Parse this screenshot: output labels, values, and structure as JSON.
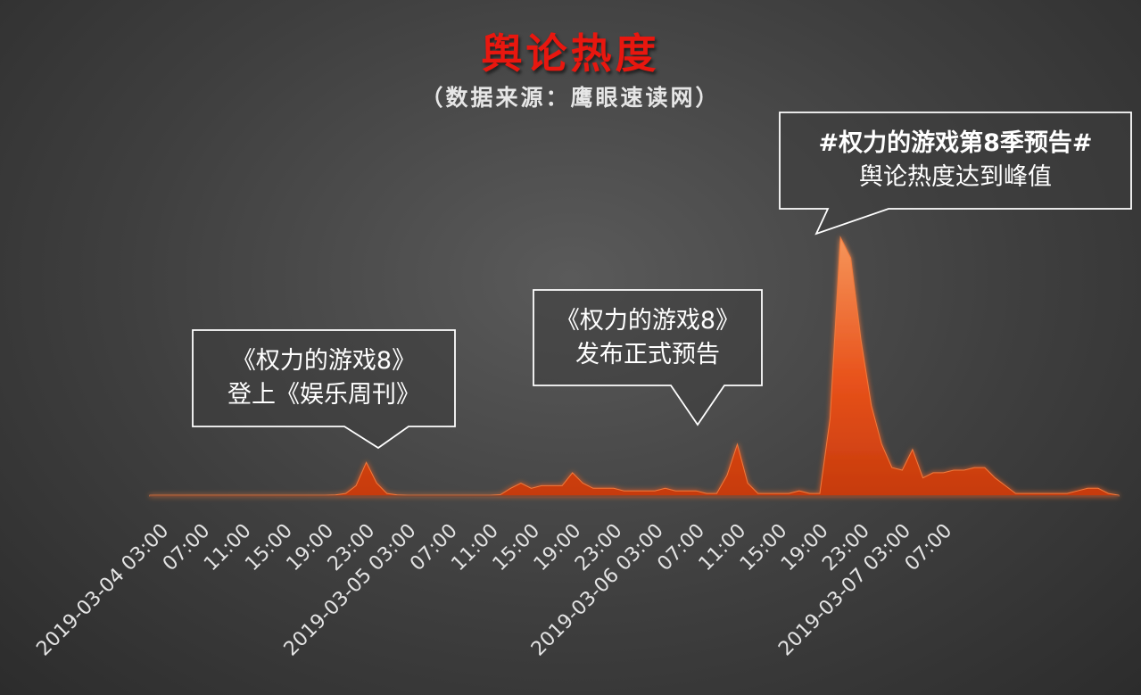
{
  "chart_data": {
    "type": "area",
    "title": "舆论热度",
    "subtitle": "（数据来源：鹰眼速读网）",
    "x_tick_labels": [
      "2019-03-04 03:00",
      "07:00",
      "11:00",
      "15:00",
      "19:00",
      "23:00",
      "2019-03-05 03:00",
      "07:00",
      "11:00",
      "15:00",
      "19:00",
      "23:00",
      "2019-03-06 03:00",
      "07:00",
      "11:00",
      "15:00",
      "19:00",
      "23:00",
      "2019-03-07 03:00",
      "07:00"
    ],
    "x_start": "2019-03-04 03:00",
    "x_step_hours": 1,
    "series": [
      {
        "values": [
          0.3,
          0.3,
          0.3,
          0.3,
          0.3,
          0.3,
          0.3,
          0.3,
          0.3,
          0.3,
          0.3,
          0.3,
          0.3,
          0.3,
          0.3,
          0.3,
          0.3,
          0.3,
          0.4,
          1,
          4,
          13,
          5,
          1,
          0.4,
          0.3,
          0.3,
          0.3,
          0.3,
          0.3,
          0.3,
          0.3,
          0.3,
          0.3,
          0.5,
          3,
          5,
          3,
          4,
          4,
          4,
          9,
          5,
          3,
          3,
          3,
          2,
          2,
          2,
          2,
          3,
          2,
          2,
          2,
          1,
          1,
          8,
          20,
          5,
          1,
          1,
          1,
          1,
          2,
          1,
          1,
          30,
          100,
          92,
          60,
          35,
          20,
          11,
          10,
          18,
          7,
          9,
          9,
          10,
          10,
          11,
          11,
          7,
          4,
          1,
          1,
          1,
          1,
          1,
          1,
          2,
          3,
          3,
          1,
          0.3
        ],
        "color": "#e8521b"
      }
    ],
    "ylim": [
      0,
      100
    ],
    "grid": false,
    "legend": "none",
    "annotations": [
      {
        "lines": [
          "《权力的游戏8》",
          "登上《娱乐周刊》"
        ],
        "at": "2019-03-04 23:00"
      },
      {
        "lines": [
          "《权力的游戏8》",
          "发布正式预告"
        ],
        "at": "2019-03-06 00:00"
      },
      {
        "lines": [
          "#权力的游戏第8季预告#",
          "舆论热度达到峰值"
        ],
        "at": "2019-03-06 08:00"
      }
    ]
  }
}
